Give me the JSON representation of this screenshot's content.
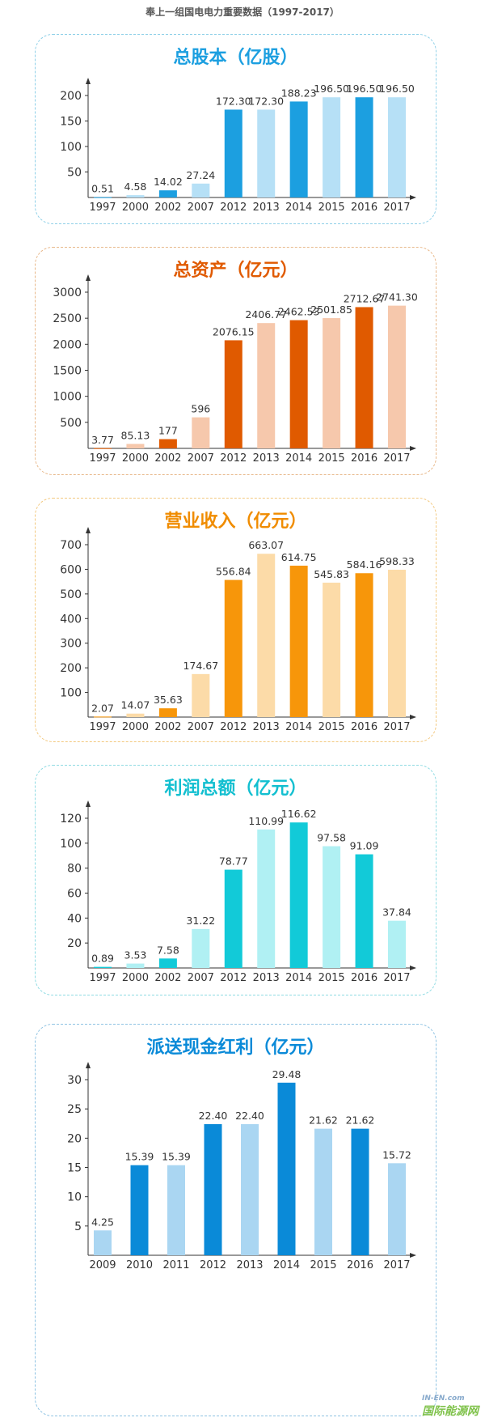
{
  "page_title": "奉上一组国电电力重要数据（1997-2017）",
  "watermark": {
    "top": "IN-EN.com",
    "bottom": "国际能源网"
  },
  "chart_data": [
    {
      "type": "bar",
      "title": "总股本（亿股）",
      "color_dark": "#1c9fe0",
      "color_light": "#b6e0f6",
      "title_color": "#1c9fe0",
      "border_color": "#8fd0e8",
      "categories": [
        "1997",
        "2000",
        "2002",
        "2007",
        "2012",
        "2013",
        "2014",
        "2015",
        "2016",
        "2017"
      ],
      "values": [
        0.51,
        4.58,
        14.02,
        27.24,
        172.3,
        172.3,
        188.23,
        196.5,
        196.5,
        196.5
      ],
      "labels": [
        "0.51",
        "4.58",
        "14.02",
        "27.24",
        "172.30",
        "172.30",
        "188.23",
        "196.50",
        "196.50",
        "196.50"
      ],
      "yticks": [
        50,
        100,
        150,
        200
      ]
    },
    {
      "type": "bar",
      "title": "总资产（亿元）",
      "color_dark": "#e05a00",
      "color_light": "#f6c8ac",
      "title_color": "#e05a00",
      "border_color": "#e8b88a",
      "categories": [
        "1997",
        "2000",
        "2002",
        "2007",
        "2012",
        "2013",
        "2014",
        "2015",
        "2016",
        "2017"
      ],
      "values": [
        3.77,
        85.13,
        177,
        596,
        2076.15,
        2406.77,
        2462.53,
        2501.85,
        2712.67,
        2741.3
      ],
      "labels": [
        "3.77",
        "85.13",
        "177",
        "596",
        "2076.15",
        "2406.77",
        "2462.53",
        "2501.85",
        "2712.67",
        "2741.30"
      ],
      "yticks": [
        500,
        1000,
        1500,
        2000,
        2500,
        3000
      ]
    },
    {
      "type": "bar",
      "title": "营业收入（亿元）",
      "color_dark": "#f7960a",
      "color_light": "#fcdba8",
      "title_color": "#f08c00",
      "border_color": "#f3c980",
      "categories": [
        "1997",
        "2000",
        "2002",
        "2007",
        "2012",
        "2013",
        "2014",
        "2015",
        "2016",
        "2017"
      ],
      "values": [
        2.07,
        14.07,
        35.63,
        174.67,
        556.84,
        663.07,
        614.75,
        545.83,
        584.16,
        598.33
      ],
      "labels": [
        "2.07",
        "14.07",
        "35.63",
        "174.67",
        "556.84",
        "663.07",
        "614.75",
        "545.83",
        "584.16",
        "598.33"
      ],
      "yticks": [
        100,
        200,
        300,
        400,
        500,
        600,
        700
      ]
    },
    {
      "type": "bar",
      "title": "利润总额（亿元）",
      "color_dark": "#12cad8",
      "color_light": "#b0f0f3",
      "title_color": "#12bfd0",
      "border_color": "#8fdbe3",
      "categories": [
        "1997",
        "2000",
        "2002",
        "2007",
        "2012",
        "2013",
        "2014",
        "2015",
        "2016",
        "2017"
      ],
      "values": [
        0.89,
        3.53,
        7.58,
        31.22,
        78.77,
        110.99,
        116.62,
        97.58,
        91.09,
        37.84
      ],
      "labels": [
        "0.89",
        "3.53",
        "7.58",
        "31.22",
        "78.77",
        "110.99",
        "116.62",
        "97.58",
        "91.09",
        "37.84"
      ],
      "yticks": [
        20,
        40,
        60,
        80,
        100,
        120
      ]
    },
    {
      "type": "bar",
      "title": "派送现金红利（亿元）",
      "color_dark": "#0a8ad8",
      "color_light": "#aad6f2",
      "title_color": "#0a8ad8",
      "border_color": "#8fc3e3",
      "categories": [
        "2009",
        "2010",
        "2011",
        "2012",
        "2013",
        "2014",
        "2015",
        "2016",
        "2017"
      ],
      "values": [
        4.25,
        15.39,
        15.39,
        22.4,
        22.4,
        29.48,
        21.62,
        21.62,
        15.72
      ],
      "labels": [
        "4.25",
        "15.39",
        "15.39",
        "22.40",
        "22.40",
        "29.48",
        "21.62",
        "21.62",
        "15.72"
      ],
      "yticks": [
        5,
        10,
        15,
        20,
        25,
        30
      ],
      "dark_odd": true
    }
  ]
}
